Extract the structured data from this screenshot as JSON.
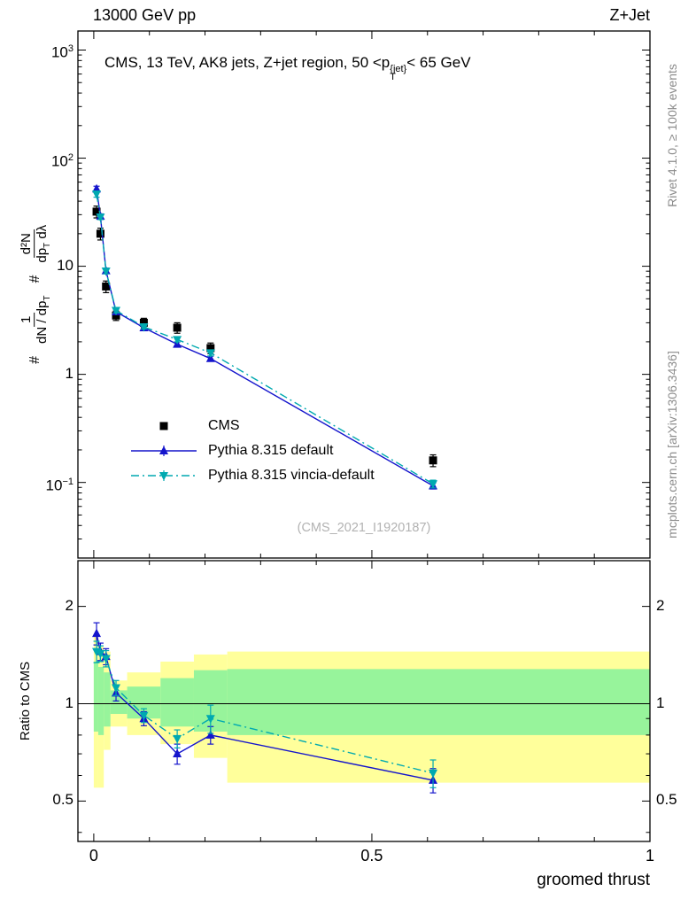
{
  "header": {
    "left": "13000 GeV pp",
    "right": "Z+Jet"
  },
  "plot_title": {
    "pre": "CMS, 13 TeV, AK8 jets, Z+jet region, 50 <p",
    "sup": "{jet}",
    "sub": "T",
    "post": "< 65 GeV"
  },
  "ylabel_main": {
    "hash1": "#",
    "f1_num": "1",
    "f1_den_pre": "dN / dp",
    "f1_den_sub": "T",
    "hash2": "#",
    "f2_num": "d²N",
    "f2_den_pre": "dp",
    "f2_den_sub": "T",
    "f2_den_post": " dλ"
  },
  "ratio_ylabel": "Ratio to CMS",
  "xlabel": "groomed thrust",
  "watermark": "(CMS_2021_I1920187)",
  "right_labels": {
    "top": "Rivet 4.1.0, ≥ 100k events",
    "bottom": "mcplots.cern.ch [arXiv:1306.3436]"
  },
  "chart_data": {
    "type": "line",
    "title": "CMS, 13 TeV, AK8 jets, Z+jet region, 50 < pT{jet} < 65 GeV",
    "xlabel": "groomed thrust",
    "ylabel": "1/(dN/dpT) d²N/(dpT dλ)",
    "ratio_label": "Ratio to CMS",
    "legend_position": "inside-left",
    "x_range": [
      -0.0285,
      1.0
    ],
    "x_ticks": [
      0,
      0.5,
      1
    ],
    "x_minor_step": 0.1,
    "main_y_scale": "log",
    "main_y_range": [
      0.02,
      1500
    ],
    "main_y_ticks": [
      0.1,
      1,
      10,
      100,
      1000
    ],
    "ratio_y_scale": "log",
    "ratio_y_range": [
      0.375,
      2.77
    ],
    "ratio_y_ticks": [
      0.5,
      1,
      2
    ],
    "ratio_y_minor_ticks": [
      0.4,
      0.6,
      0.7,
      0.8,
      0.9
    ],
    "band_colors": {
      "yellow": "#ffff9b",
      "green": "#97f49b"
    },
    "bands": [
      {
        "x1": 0.0,
        "x2": 0.008,
        "yellow": [
          0.55,
          1.62
        ],
        "green": [
          0.82,
          1.35
        ]
      },
      {
        "x1": 0.008,
        "x2": 0.018,
        "yellow": [
          0.55,
          1.5
        ],
        "green": [
          0.8,
          1.3
        ]
      },
      {
        "x1": 0.018,
        "x2": 0.03,
        "yellow": [
          0.72,
          1.45
        ],
        "green": [
          0.85,
          1.25
        ]
      },
      {
        "x1": 0.03,
        "x2": 0.06,
        "yellow": [
          0.85,
          1.18
        ],
        "green": [
          0.93,
          1.1
        ]
      },
      {
        "x1": 0.06,
        "x2": 0.12,
        "yellow": [
          0.8,
          1.25
        ],
        "green": [
          0.9,
          1.13
        ]
      },
      {
        "x1": 0.12,
        "x2": 0.18,
        "yellow": [
          0.75,
          1.35
        ],
        "green": [
          0.85,
          1.2
        ]
      },
      {
        "x1": 0.18,
        "x2": 0.24,
        "yellow": [
          0.68,
          1.42
        ],
        "green": [
          0.82,
          1.27
        ]
      },
      {
        "x1": 0.24,
        "x2": 1.0,
        "yellow": [
          0.57,
          1.45
        ],
        "green": [
          0.8,
          1.28
        ]
      }
    ],
    "series": [
      {
        "name": "CMS",
        "color": "#000000",
        "marker": "square",
        "line": "none",
        "x": [
          0.005,
          0.012,
          0.022,
          0.04,
          0.09,
          0.15,
          0.21,
          0.61
        ],
        "y": [
          32,
          20,
          6.5,
          3.5,
          3.0,
          2.7,
          1.75,
          0.16
        ],
        "yerr": [
          4,
          2.5,
          0.8,
          0.35,
          0.3,
          0.3,
          0.2,
          0.02
        ]
      },
      {
        "name": "Pythia 8.315 default",
        "color": "#1414cc",
        "marker": "triangle-up",
        "line": "solid",
        "x": [
          0.005,
          0.012,
          0.022,
          0.04,
          0.09,
          0.15,
          0.21,
          0.61
        ],
        "y": [
          52,
          29,
          9.1,
          3.8,
          2.7,
          1.9,
          1.4,
          0.093
        ],
        "yerr": [
          3,
          1.5,
          0.5,
          0.2,
          0.12,
          0.09,
          0.07,
          0.006
        ],
        "ratio": [
          1.65,
          1.45,
          1.4,
          1.08,
          0.9,
          0.7,
          0.8,
          0.58
        ],
        "ratio_err": [
          0.13,
          0.09,
          0.08,
          0.06,
          0.045,
          0.05,
          0.05,
          0.05
        ]
      },
      {
        "name": "Pythia 8.315 vincia-default",
        "color": "#00a9b0",
        "marker": "triangle-down",
        "line": "dashdot",
        "x": [
          0.005,
          0.012,
          0.022,
          0.04,
          0.09,
          0.15,
          0.21,
          0.61
        ],
        "y": [
          46.5,
          28.5,
          9.0,
          3.9,
          2.75,
          2.1,
          1.58,
          0.097
        ],
        "yerr": [
          3,
          1.5,
          0.5,
          0.2,
          0.12,
          0.1,
          0.1,
          0.008
        ],
        "ratio": [
          1.45,
          1.43,
          1.38,
          1.12,
          0.92,
          0.78,
          0.9,
          0.61
        ],
        "ratio_err": [
          0.11,
          0.08,
          0.08,
          0.06,
          0.045,
          0.05,
          0.09,
          0.06
        ]
      }
    ]
  }
}
